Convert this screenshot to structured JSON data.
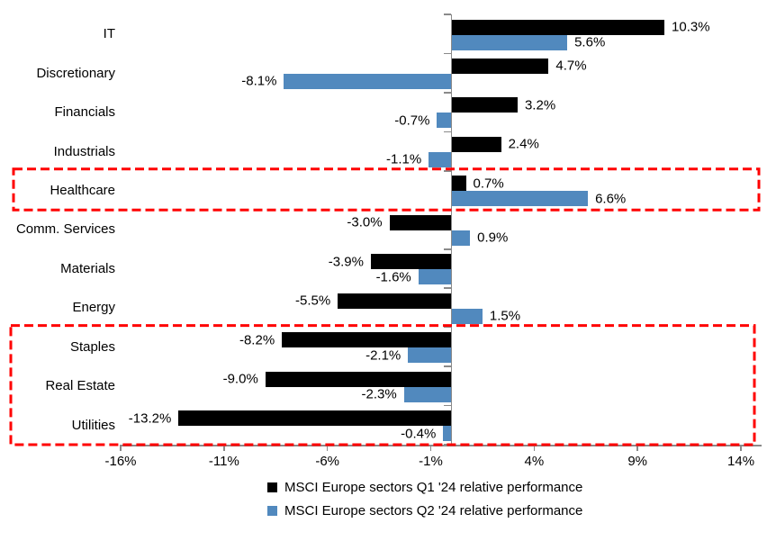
{
  "chart_data": {
    "type": "bar",
    "orientation": "horizontal",
    "title": "",
    "categories": [
      "IT",
      "Discretionary",
      "Financials",
      "Industrials",
      "Healthcare",
      "Comm. Services",
      "Materials",
      "Energy",
      "Staples",
      "Real Estate",
      "Utilities"
    ],
    "series": [
      {
        "name": "MSCI Europe sectors Q1 '24 relative performance",
        "color": "#000000",
        "values": [
          10.3,
          4.7,
          3.2,
          2.4,
          0.7,
          -3.0,
          -3.9,
          -5.5,
          -8.2,
          -9.0,
          -13.2
        ],
        "labels": [
          "10.3%",
          "4.7%",
          "3.2%",
          "2.4%",
          "0.7%",
          "-3.0%",
          "-3.9%",
          "-5.5%",
          "-8.2%",
          "-9.0%",
          "-13.2%"
        ]
      },
      {
        "name": "MSCI Europe sectors Q2 '24 relative performance",
        "color": "#5189BE",
        "values": [
          5.6,
          -8.1,
          -0.7,
          -1.1,
          6.6,
          0.9,
          -1.6,
          1.5,
          -2.1,
          -2.3,
          -0.4
        ],
        "labels": [
          "5.6%",
          "-8.1%",
          "-0.7%",
          "-1.1%",
          "6.6%",
          "0.9%",
          "-1.6%",
          "1.5%",
          "-2.1%",
          "-2.3%",
          "-0.4%"
        ]
      }
    ],
    "x_ticks": [
      {
        "value": -16,
        "label": "-16%"
      },
      {
        "value": -11,
        "label": "-11%"
      },
      {
        "value": -6,
        "label": "-6%"
      },
      {
        "value": -1,
        "label": "-1%"
      },
      {
        "value": 4,
        "label": "4%"
      },
      {
        "value": 9,
        "label": "9%"
      },
      {
        "value": 14,
        "label": "14%"
      }
    ],
    "xlim": [
      -16,
      15
    ],
    "grid": false,
    "legend_position": "bottom",
    "highlights": [
      {
        "rows": [
          4,
          4
        ],
        "note": "Healthcare row outlined"
      },
      {
        "rows": [
          8,
          10
        ],
        "note": "Staples, Real Estate, Utilities outlined"
      }
    ]
  },
  "colors": {
    "q1_bar": "#000000",
    "q2_bar": "#5189BE",
    "highlight_red": "#FF0000",
    "axis_gray": "#8A8A8A",
    "text": "#000000",
    "background": "#FFFFFF"
  }
}
